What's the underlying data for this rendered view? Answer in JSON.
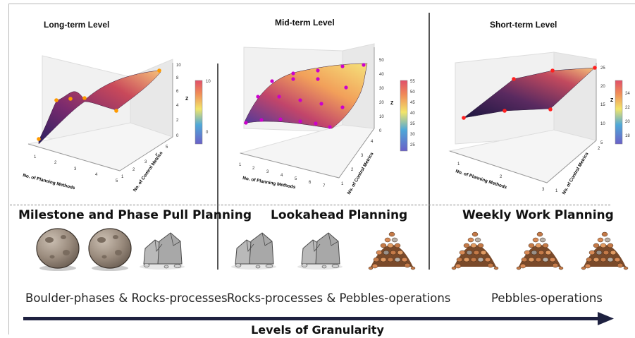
{
  "panels": [
    {
      "title": "Long-term Level",
      "xlabel": "No. of Planning Methods",
      "ylabel": "No. of Control Metrics",
      "zlabel": "Z",
      "xticks": [
        "1",
        "2",
        "3",
        "4",
        "5"
      ],
      "yticks": [
        "1",
        "2",
        "3",
        "4",
        "5"
      ],
      "zticks": [
        "0",
        "2",
        "4",
        "6",
        "8",
        "10"
      ],
      "cbar_ticks": [
        "10",
        "8",
        "6",
        "4",
        "2",
        "0"
      ],
      "colors": {
        "surface_top": "#f5c27a",
        "surface_mid": "#b5384f",
        "surface_low": "#3b2a78",
        "points": "#ff9a00"
      }
    },
    {
      "title": "Mid-term Level",
      "xlabel": "No. of Planning Methods",
      "ylabel": "No. of Control Metrics",
      "zlabel": "Z",
      "xticks": [
        "1",
        "2",
        "3",
        "4",
        "5",
        "6",
        "7"
      ],
      "yticks": [
        "1",
        "2",
        "3",
        "4"
      ],
      "zticks": [
        "0",
        "10",
        "20",
        "30",
        "40",
        "50"
      ],
      "cbar_ticks": [
        "55",
        "50",
        "45",
        "40",
        "35",
        "30",
        "25"
      ],
      "colors": {
        "surface_top": "#f4d36a",
        "surface_mid": "#e07a5f",
        "surface_low": "#6a4bb8",
        "points": "#cc00cc"
      }
    },
    {
      "title": "Short-term Level",
      "xlabel": "No. of Planning Methods",
      "ylabel": "No. of Control Metrics",
      "zlabel": "Z",
      "xticks": [
        "1",
        "2",
        "3"
      ],
      "yticks": [
        "1",
        "2"
      ],
      "zticks": [
        "5",
        "10",
        "15",
        "20",
        "25"
      ],
      "cbar_ticks": [
        "24",
        "22",
        "20",
        "18"
      ],
      "colors": {
        "surface_top": "#f5c27a",
        "surface_mid": "#b5384f",
        "surface_low": "#2a1f55",
        "points": "#ff2020"
      }
    }
  ],
  "sections": [
    {
      "title": "Milestone and Phase Pull Planning",
      "stones": [
        "boulder",
        "boulder",
        "rocks"
      ]
    },
    {
      "title": "Lookahead Planning",
      "stones": [
        "rocks",
        "rocks",
        "pebbles"
      ]
    },
    {
      "title": "Weekly Work Planning",
      "stones": [
        "pebbles",
        "pebbles",
        "pebbles"
      ]
    }
  ],
  "bottom_labels": [
    "Boulder-phases & Rocks-processes",
    "Rocks-processes & Pebbles-operations",
    "Pebbles-operations"
  ],
  "axis_label": "Levels of Granularity",
  "arrow_color": "#1e2140"
}
